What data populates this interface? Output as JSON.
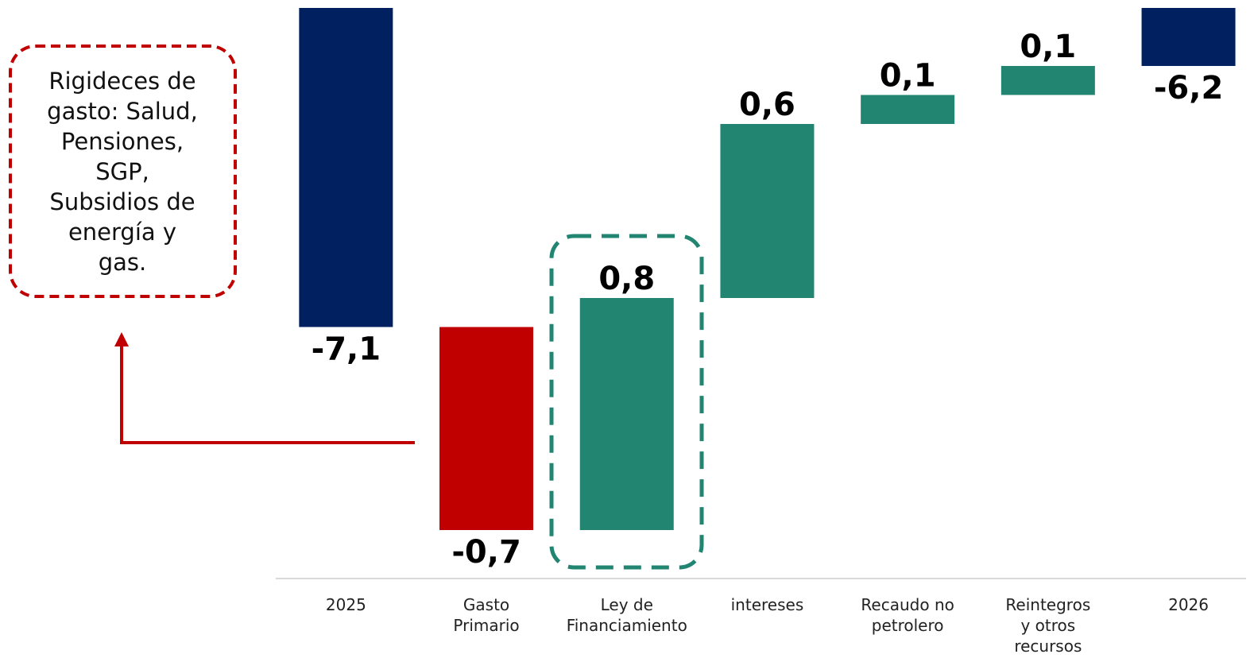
{
  "chart_data": {
    "type": "waterfall",
    "categories": [
      "2025",
      "Gasto\nPrimario",
      "Ley de\nFinanciamiento",
      "intereses",
      "Recaudo no\npetrolero",
      "Reintegros\ny otros\nrecursos",
      "2026"
    ],
    "values": [
      -7.1,
      -0.7,
      0.8,
      0.6,
      0.1,
      0.1,
      -6.2
    ],
    "value_labels": [
      "-7,1",
      "-0,7",
      "0,8",
      "0,6",
      "0,1",
      "0,1",
      "-6,2"
    ],
    "measure": [
      "total",
      "relative",
      "relative",
      "relative",
      "relative",
      "relative",
      "total"
    ],
    "colors": [
      "#002060",
      "#c00000",
      "#218572",
      "#218572",
      "#218572",
      "#218572",
      "#002060"
    ],
    "ylim": [
      -8,
      -6
    ],
    "annotation": {
      "lines": [
        "Rigideces de",
        "gasto: Salud,",
        "Pensiones,",
        "SGP,",
        "Subsidios de",
        "energía y",
        "gas."
      ]
    }
  }
}
